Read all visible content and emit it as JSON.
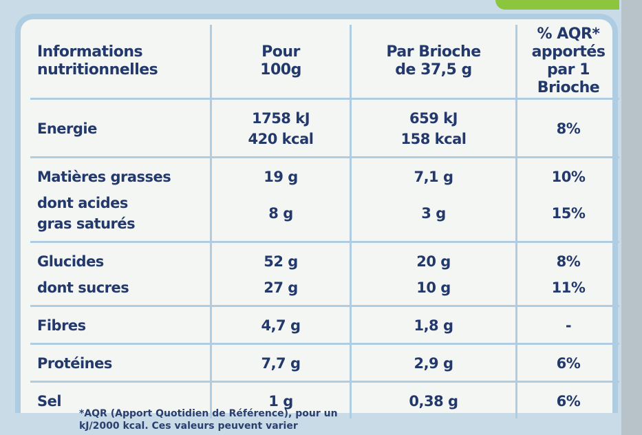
{
  "table": {
    "header": [
      [
        "Informations",
        "nutritionnelles"
      ],
      [
        "Pour",
        "100g"
      ],
      [
        "Par Brioche",
        "de 37,5 g"
      ],
      [
        "% AQR* apportés",
        "par 1 Brioche"
      ]
    ],
    "groups": [
      [
        [
          [
            "Energie"
          ],
          [
            "1758 kJ",
            "420 kcal"
          ],
          [
            "659 kJ",
            "158 kcal"
          ],
          [
            "8%"
          ]
        ]
      ],
      [
        [
          [
            "Matières grasses"
          ],
          [
            "19 g"
          ],
          [
            "7,1 g"
          ],
          [
            "10%"
          ]
        ],
        [
          [
            "dont acides",
            "gras saturés"
          ],
          [
            "8 g"
          ],
          [
            "3 g"
          ],
          [
            "15%"
          ]
        ]
      ],
      [
        [
          [
            "Glucides"
          ],
          [
            "52 g"
          ],
          [
            "20 g"
          ],
          [
            "8%"
          ]
        ],
        [
          [
            "dont sucres"
          ],
          [
            "27 g"
          ],
          [
            "10 g"
          ],
          [
            "11%"
          ]
        ]
      ],
      [
        [
          [
            "Fibres"
          ],
          [
            "4,7 g"
          ],
          [
            "1,8 g"
          ],
          [
            "-"
          ]
        ]
      ],
      [
        [
          [
            "Protéines"
          ],
          [
            "7,7 g"
          ],
          [
            "2,9 g"
          ],
          [
            "6%"
          ]
        ]
      ],
      [
        [
          [
            "Sel"
          ],
          [
            "1 g"
          ],
          [
            "0,38 g"
          ],
          [
            "6%"
          ]
        ]
      ]
    ]
  },
  "footnote": [
    "*AQR (Apport Quotidien de Référence), pour un",
    "kJ/2000 kcal. Ces valeurs peuvent varier"
  ]
}
